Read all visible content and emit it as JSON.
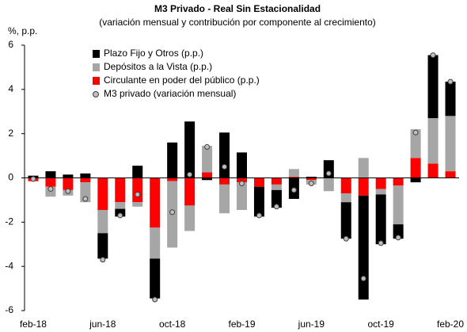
{
  "chart_data": {
    "type": "bar",
    "stacked": true,
    "title": "M3 Privado - Real Sin Estacionalidad",
    "subtitle": "(variación mensual y contribución por componente al crecimiento)",
    "y_label": "%, p.p.",
    "categories": [
      "feb-18",
      null,
      null,
      null,
      "jun-18",
      null,
      null,
      null,
      "oct-18",
      null,
      null,
      null,
      "feb-19",
      null,
      null,
      null,
      "jun-19",
      null,
      null,
      null,
      "oct-19",
      null,
      null,
      null,
      "feb-20"
    ],
    "series": [
      {
        "name": "Plazo Fijo y Otros (p.p.)",
        "type": "bar",
        "color": "#000000",
        "values": [
          0.1,
          0.3,
          0.15,
          0.2,
          -1.15,
          -0.35,
          0.55,
          -1.8,
          1.6,
          2.55,
          -0.1,
          2.05,
          1.15,
          -1.35,
          -0.8,
          -0.95,
          0.05,
          0.8,
          -1.65,
          -4.7,
          -2.25,
          -0.65,
          -0.2,
          2.85,
          1.55
        ]
      },
      {
        "name": "Depósitos a la Vista (p.p.)",
        "type": "bar",
        "color": "#a6a6a6",
        "values": [
          0,
          -0.45,
          -0.25,
          -0.9,
          -1.05,
          -0.3,
          -0.2,
          -1.4,
          -3.0,
          -1.15,
          1.2,
          -1.3,
          -1.25,
          0,
          -0.25,
          0.35,
          -0.2,
          -0.6,
          -0.4,
          0.9,
          -0.25,
          -1.75,
          1.3,
          2.05,
          2.5
        ]
      },
      {
        "name": "Circulante en poder del público (p.p.)",
        "type": "bar",
        "color": "#ff0000",
        "values": [
          -0.15,
          -0.4,
          -0.55,
          -0.2,
          -1.45,
          -1.1,
          -1.1,
          -2.25,
          -0.15,
          -1.25,
          0.25,
          -0.3,
          -0.2,
          -0.4,
          -0.3,
          0.05,
          -0.1,
          0,
          -0.7,
          -0.8,
          -0.5,
          -0.35,
          0.9,
          0.65,
          0.3
        ]
      },
      {
        "name": "M3 privado (variación mensual)",
        "type": "scatter",
        "color": "#bfbfbf",
        "values": [
          -0.05,
          -0.5,
          -0.6,
          -0.95,
          -3.7,
          -1.7,
          -0.75,
          -5.5,
          -1.55,
          0.15,
          1.4,
          0.5,
          -0.25,
          -1.7,
          -1.3,
          -0.55,
          -0.25,
          0.2,
          -2.75,
          -4.55,
          -2.95,
          -2.7,
          2.05,
          5.55,
          4.35
        ]
      }
    ],
    "ylim": [
      -6,
      6
    ],
    "yticks": [
      -6,
      -4,
      -2,
      0,
      2,
      4,
      6
    ],
    "legend": "upper left"
  }
}
